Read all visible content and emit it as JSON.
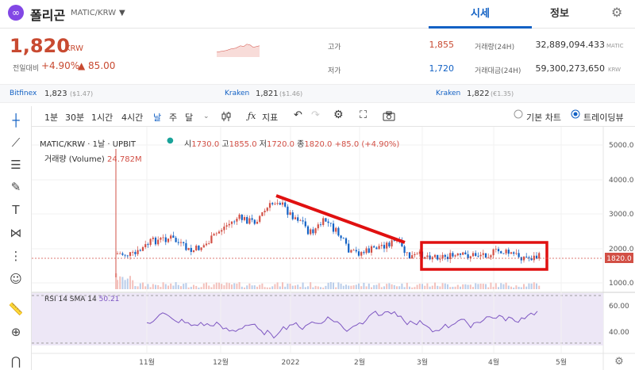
{
  "header": {
    "coin_name": "폴리곤",
    "pair": "MATIC/KRW",
    "tabs": [
      "시세",
      "정보"
    ]
  },
  "price": {
    "current": "1,820",
    "unit": "KRW",
    "change_label": "전일대비",
    "change_rate": "+4.90%",
    "change_amount": "▲ 85.00"
  },
  "stats": {
    "high_label": "고가",
    "high": "1,855",
    "low_label": "저가",
    "low": "1,720",
    "volume_label": "거래량(24H)",
    "volume": "32,889,094.433",
    "volume_unit": "MATIC",
    "amount_label": "거래대금(24H)",
    "amount": "59,300,273,650",
    "amount_unit": "KRW"
  },
  "exchanges": [
    {
      "name": "Bitfinex",
      "price": "1,823",
      "usd": "($1.47)"
    },
    {
      "name": "Kraken",
      "price": "1,821",
      "usd": "($1.46)"
    },
    {
      "name": "Kraken",
      "price": "1,822",
      "usd": "(€1.35)"
    }
  ],
  "toolbar": {
    "intervals": [
      "1분",
      "30분",
      "1시간",
      "4시간",
      "날",
      "주",
      "달"
    ],
    "active_interval": "날",
    "indicator_label": "지표",
    "chart_modes": [
      "기본 차트",
      "트레이딩뷰"
    ],
    "selected_mode": "트레이딩뷰"
  },
  "chart": {
    "symbol_line": "MATIC/KRW · 1날 · UPBIT",
    "ohlc": {
      "o_label": "시",
      "o": "1730.0",
      "h_label": "고",
      "h": "1855.0",
      "l_label": "저",
      "l": "1720.0",
      "c_label": "종",
      "c": "1820.0",
      "chg": "+85.0 (+4.90%)"
    },
    "volume_label": "거래량 (Volume)",
    "volume_value": "24.782M",
    "price_ticks": [
      "5000.0",
      "4000.0",
      "3000.0",
      "2000.0",
      "1000.0"
    ],
    "current_price_tag": "1820.0",
    "rsi_label": "RSI 14 SMA 14",
    "rsi_value": "50.21",
    "rsi_ticks": [
      "60.00",
      "40.00"
    ],
    "x_ticks": [
      "11월",
      "12월",
      "2022",
      "2월",
      "3월",
      "4월",
      "5월"
    ]
  },
  "colors": {
    "up": "#d24f45",
    "down": "#1261c4",
    "accent": "#1261c4",
    "annotation": "#e01010",
    "rsi_line": "#7e57c2",
    "rsi_band": "#ede7f6"
  }
}
